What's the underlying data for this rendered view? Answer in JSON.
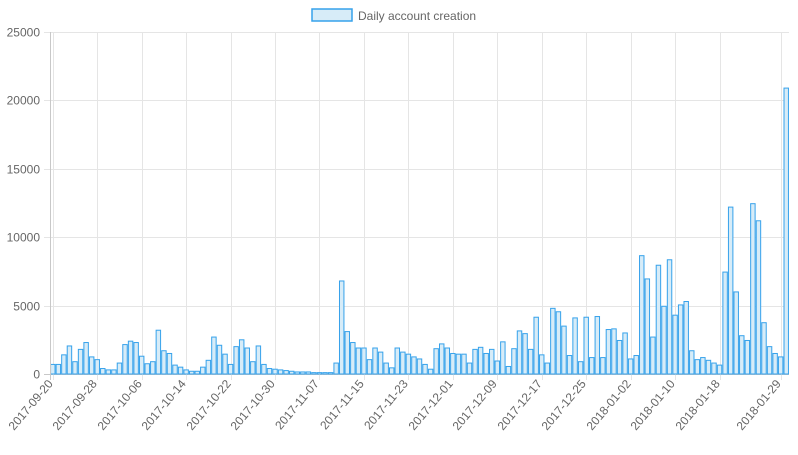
{
  "chart_data": {
    "type": "bar",
    "legend": {
      "label": "Daily account creation",
      "position": "top-center"
    },
    "colors": {
      "bar_fill": "#d7ecf8",
      "bar_stroke": "#36a2eb",
      "grid": "#e5e5e5",
      "axis": "#c8c8c8",
      "tick_text": "#666666"
    },
    "grid": true,
    "ylim": [
      0,
      25000
    ],
    "yticks": [
      0,
      5000,
      10000,
      15000,
      20000,
      25000
    ],
    "x_start": "2017-09-20",
    "xtick_labels": [
      "2017-09-20",
      "2017-09-28",
      "2017-10-06",
      "2017-10-14",
      "2017-10-22",
      "2017-10-30",
      "2017-11-07",
      "2017-11-15",
      "2017-11-23",
      "2017-12-01",
      "2017-12-09",
      "2017-12-17",
      "2017-12-25",
      "2018-01-02",
      "2018-01-10",
      "2018-01-18",
      "2018-01-29"
    ],
    "values": [
      700,
      700,
      1400,
      2050,
      900,
      1800,
      2300,
      1250,
      1050,
      400,
      300,
      300,
      800,
      2150,
      2400,
      2300,
      1300,
      750,
      900,
      3200,
      1700,
      1500,
      650,
      500,
      300,
      200,
      200,
      500,
      1000,
      2700,
      2100,
      1450,
      700,
      2000,
      2500,
      1900,
      900,
      2050,
      700,
      400,
      350,
      300,
      250,
      200,
      150,
      150,
      150,
      100,
      100,
      100,
      100,
      800,
      6800,
      3100,
      2300,
      1900,
      1900,
      1050,
      1900,
      1600,
      800,
      450,
      1900,
      1600,
      1450,
      1250,
      1100,
      700,
      350,
      1850,
      2200,
      1900,
      1500,
      1450,
      1450,
      800,
      1800,
      1950,
      1500,
      1800,
      950,
      2350,
      550,
      1850,
      3150,
      2950,
      1800,
      4150,
      1400,
      800,
      4800,
      4550,
      3500,
      1350,
      4100,
      900,
      4150,
      1200,
      4200,
      1200,
      3250,
      3300,
      2450,
      3000,
      1100,
      1350,
      8650,
      6950,
      2700,
      7950,
      4950,
      8350,
      4300,
      5050,
      5300,
      1700,
      1050,
      1200,
      1000,
      800,
      650,
      7450,
      12200,
      6000,
      2800,
      2450,
      12450,
      11200,
      3750,
      2000,
      1500,
      1250,
      20900
    ]
  }
}
